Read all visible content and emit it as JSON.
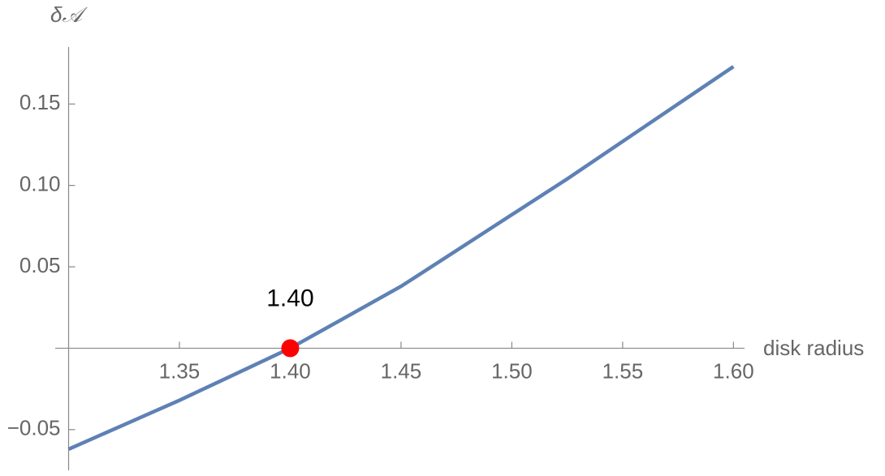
{
  "chart_data": {
    "type": "line",
    "x_label": "disk radius",
    "y_label": "δ𝒜",
    "x": [
      1.3,
      1.325,
      1.35,
      1.375,
      1.4,
      1.425,
      1.45,
      1.475,
      1.5,
      1.525,
      1.55,
      1.575,
      1.6
    ],
    "series": [
      {
        "name": "δ𝒜",
        "color": "#5e81b5",
        "values": [
          -0.062,
          -0.047,
          -0.032,
          -0.016,
          0,
          0.019,
          0.038,
          0.06,
          0.082,
          0.104,
          0.127,
          0.15,
          0.173
        ]
      }
    ],
    "xlim": [
      1.3,
      1.605
    ],
    "ylim": [
      -0.075,
      0.185
    ],
    "xticks": [
      1.35,
      {
        "value": 1.4,
        "label": "1.40"
      },
      1.45,
      {
        "value": 1.5,
        "label": "1.50"
      },
      1.55,
      {
        "value": 1.6,
        "label": "1.60"
      }
    ],
    "yticks": [
      {
        "value": -0.05,
        "label": "−0.05"
      },
      0.05,
      {
        "value": 0.1,
        "label": "0.10"
      },
      0.15
    ],
    "annotations": [
      {
        "x": 1.4,
        "y": 0,
        "label": "1.40",
        "color": "#ff0000"
      }
    ]
  }
}
